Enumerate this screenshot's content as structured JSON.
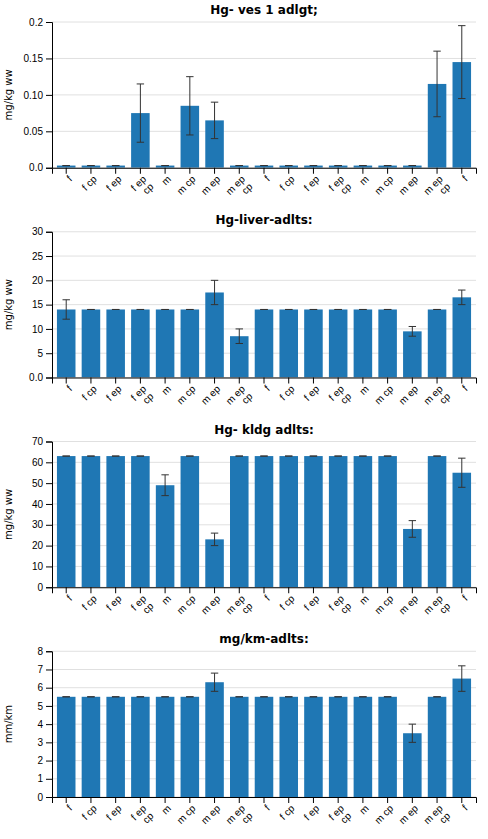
{
  "chart_data": [
    {
      "type": "bar",
      "title": "Hg- ves 1 adlgt;",
      "ylabel": "mg/kg ww",
      "categories": [
        "f",
        "f cp",
        "f ep",
        "f ep\ncp",
        "m",
        "m cp",
        "m ep",
        "m ep\ncp",
        "f",
        "f cp",
        "f ep",
        "f ep\ncp",
        "m",
        "m cp",
        "m ep",
        "m ep\ncp",
        "f"
      ],
      "values": [
        0.003,
        0.003,
        0.003,
        0.075,
        0.003,
        0.085,
        0.065,
        0.003,
        0.003,
        0.003,
        0.003,
        0.003,
        0.003,
        0.003,
        0.003,
        0.115,
        0.145
      ],
      "errors": [
        0.0,
        0.0,
        0.0,
        0.04,
        0.0,
        0.04,
        0.025,
        0.0,
        0.0,
        0.0,
        0.0,
        0.0,
        0.0,
        0.0,
        0.0,
        0.045,
        0.05
      ],
      "ylim": [
        0,
        0.2
      ],
      "yticks": [
        {
          "value": 0.0,
          "label": "0.0"
        },
        0.05,
        {
          "value": 0.1,
          "label": "0.10"
        },
        0.15,
        0.2
      ],
      "grid": true
    },
    {
      "type": "bar",
      "title": "Hg-liver-adlts:",
      "ylabel": "mg/kg ww",
      "categories": [
        "f",
        "f cp",
        "f ep",
        "f ep\ncp",
        "m",
        "m cp",
        "m ep",
        "m ep\ncp",
        "f",
        "f cp",
        "f ep",
        "f ep\ncp",
        "m",
        "m cp",
        "m ep",
        "m ep\ncp",
        "f"
      ],
      "values": [
        14.0,
        14.0,
        14.0,
        14.0,
        14.0,
        14.0,
        17.5,
        8.5,
        14.0,
        14.0,
        14.0,
        14.0,
        14.0,
        14.0,
        9.5,
        14.0,
        16.5
      ],
      "errors": [
        2.0,
        0.0,
        0.0,
        0.0,
        0.0,
        0.0,
        2.5,
        1.5,
        0.0,
        0.0,
        0.0,
        0.0,
        0.0,
        0.0,
        1.0,
        0.0,
        1.5
      ],
      "ylim": [
        0,
        30
      ],
      "yticks": [
        {
          "value": 0,
          "label": "0.0"
        },
        5,
        10,
        15,
        20,
        25,
        30
      ],
      "grid": true
    },
    {
      "type": "bar",
      "title": "Hg- kldg adlts:",
      "ylabel": "mg/kg ww",
      "categories": [
        "f",
        "f cp",
        "f ep",
        "f ep\ncp",
        "m",
        "m cp",
        "m ep",
        "m ep\ncp",
        "f",
        "f cp",
        "f ep",
        "f ep\ncp",
        "m",
        "m cp",
        "m ep",
        "m ep\ncp",
        "f"
      ],
      "values": [
        63.0,
        63.0,
        63.0,
        63.0,
        49.0,
        63.0,
        23.0,
        63.0,
        63.0,
        63.0,
        63.0,
        63.0,
        63.0,
        63.0,
        28.0,
        63.0,
        55.0
      ],
      "errors": [
        0.0,
        0.0,
        0.0,
        0.0,
        5.0,
        0.0,
        3.0,
        0.0,
        0.0,
        0.0,
        0.0,
        0.0,
        0.0,
        0.0,
        4.0,
        0.0,
        7.0
      ],
      "ylim": [
        0,
        70
      ],
      "yticks": [
        0,
        10,
        20,
        30,
        40,
        50,
        60,
        70
      ],
      "grid": true
    },
    {
      "type": "bar",
      "title": "mg/km-adlts:",
      "ylabel": "mm/km",
      "categories": [
        "f",
        "f cp",
        "f ep",
        "f ep\ncp",
        "m",
        "m cp",
        "m ep",
        "m ep\ncp",
        "f",
        "f cp",
        "f ep",
        "f ep\ncp",
        "m",
        "m cp",
        "m ep",
        "m ep\ncp",
        "f"
      ],
      "values": [
        5.5,
        5.5,
        5.5,
        5.5,
        5.5,
        5.5,
        6.3,
        5.5,
        5.5,
        5.5,
        5.5,
        5.5,
        5.5,
        5.5,
        3.5,
        5.5,
        6.5
      ],
      "errors": [
        0.0,
        0.0,
        0.0,
        0.0,
        0.0,
        0.0,
        0.5,
        0.0,
        0.0,
        0.0,
        0.0,
        0.0,
        0.0,
        0.0,
        0.5,
        0.0,
        0.7
      ],
      "ylim": [
        0,
        8
      ],
      "yticks": [
        0,
        1,
        2,
        3,
        4,
        5,
        6,
        7,
        8
      ],
      "grid": true
    }
  ]
}
